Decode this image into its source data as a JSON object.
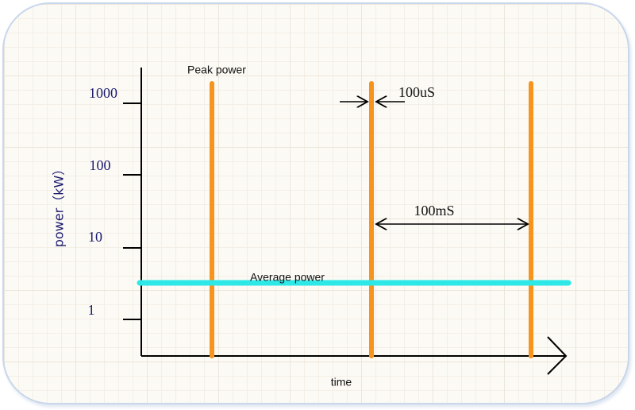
{
  "y_axis": {
    "label": "power（kW）",
    "ticks": [
      "1000",
      "100",
      "10",
      "1"
    ]
  },
  "x_axis": {
    "label": "time"
  },
  "annotations": {
    "peak": "Peak power",
    "pulse_width": "100uS",
    "period": "100mS",
    "average": "Average power"
  }
}
